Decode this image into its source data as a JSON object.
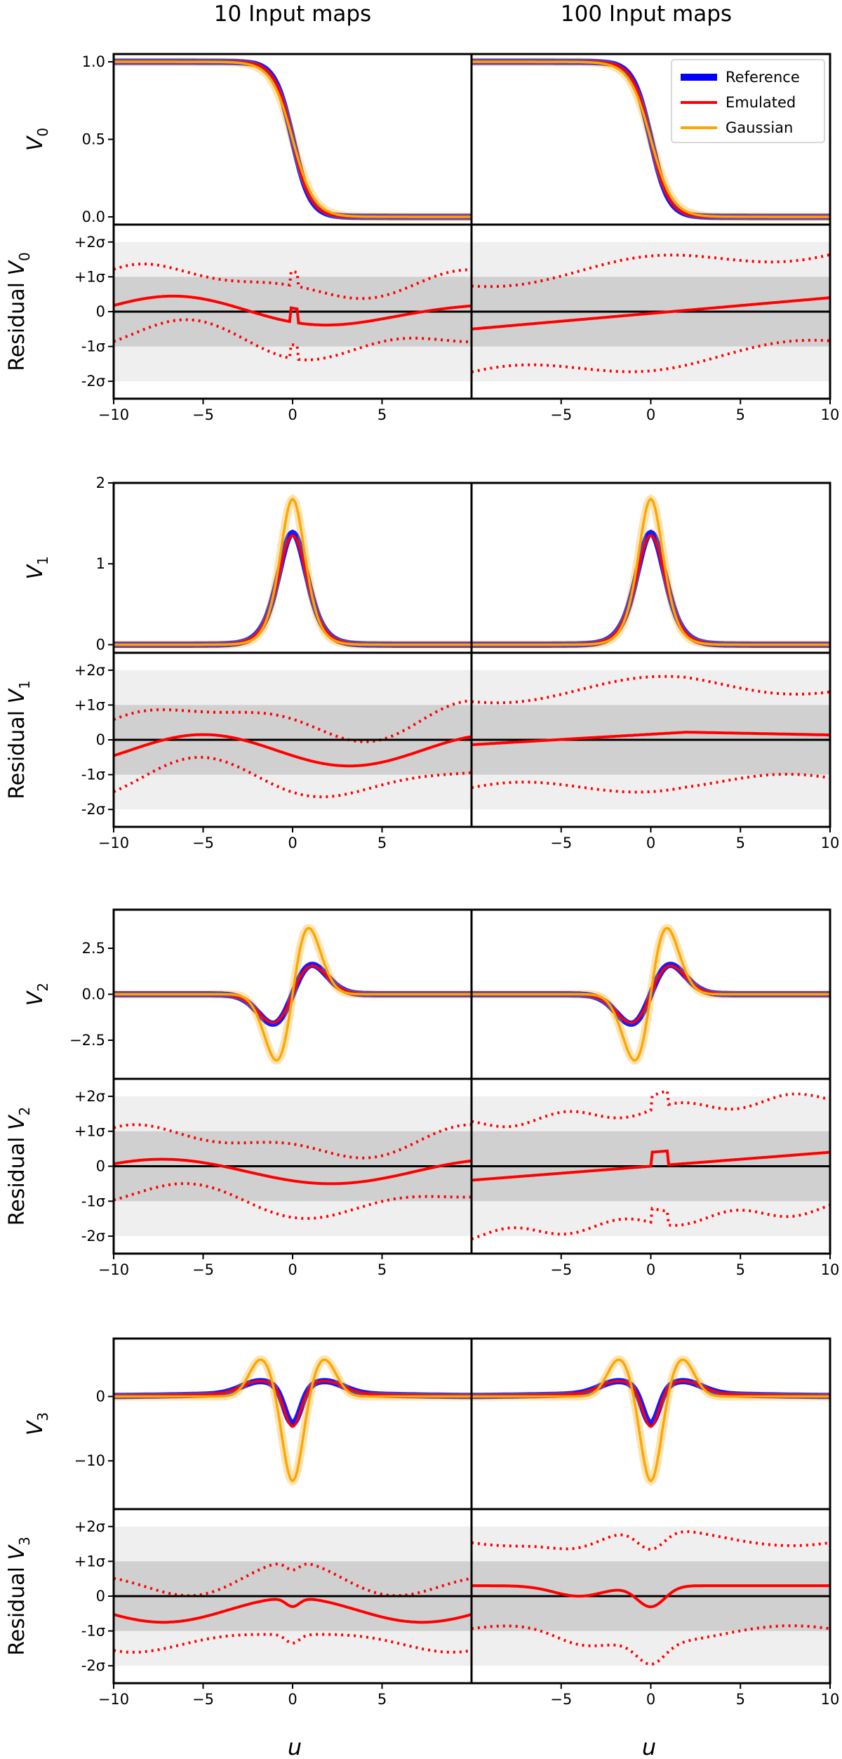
{
  "figure": {
    "column_titles": [
      "10 Input maps",
      "100 Input maps"
    ],
    "x_label": "u",
    "legend": [
      "Reference",
      "Emulated",
      "Gaussian"
    ],
    "sigma_tick_labels": [
      "+2σ",
      "+1σ",
      "0",
      "-1σ",
      "-2σ"
    ]
  },
  "colors": {
    "reference": "#0000ff",
    "emulated": "#ff0000",
    "gaussian": "#ffa500",
    "band_1sigma": "#d0d0d0",
    "band_2sigma": "#efefef"
  },
  "chart_data": [
    {
      "type": "line",
      "name": "V0",
      "panel": "top",
      "ylabel": "V0",
      "xlim": [
        -10,
        10
      ],
      "ylim": [
        -0.05,
        1.05
      ],
      "yticks": [
        0.0,
        0.5,
        1.0
      ],
      "ytick_labels": [
        "0.0",
        "0.5",
        "1.0"
      ],
      "shape": "sigmoid",
      "series": [
        {
          "name": "Reference",
          "amplitude": 1.0,
          "width": 0.5
        },
        {
          "name": "Emulated",
          "amplitude": 1.0,
          "width": 0.5
        },
        {
          "name": "Gaussian",
          "amplitude": 1.0,
          "width": 0.6
        }
      ]
    },
    {
      "type": "line",
      "name": "V1",
      "panel": "top",
      "ylabel": "V1",
      "xlim": [
        -10,
        10
      ],
      "ylim": [
        -0.1,
        2.0
      ],
      "yticks": [
        0,
        1,
        2
      ],
      "ytick_labels": [
        "0",
        "1",
        "2"
      ],
      "shape": "peak",
      "series": [
        {
          "name": "Reference",
          "amplitude": 1.38,
          "width": 1.1
        },
        {
          "name": "Emulated",
          "amplitude": 1.35,
          "width": 1.1
        },
        {
          "name": "Gaussian",
          "amplitude": 1.8,
          "width": 0.95
        }
      ]
    },
    {
      "type": "line",
      "name": "V2",
      "panel": "top",
      "ylabel": "V2",
      "xlim": [
        -10,
        10
      ],
      "ylim": [
        -4.6,
        4.6
      ],
      "yticks": [
        -2.5,
        0.0,
        2.5
      ],
      "ytick_labels": [
        "−2.5",
        "0.0",
        "2.5"
      ],
      "shape": "antisym",
      "series": [
        {
          "name": "Reference",
          "amplitude": 1.6,
          "width": 1.1
        },
        {
          "name": "Emulated",
          "amplitude": 1.55,
          "width": 1.1
        },
        {
          "name": "Gaussian",
          "amplitude": 3.6,
          "width": 0.9
        }
      ]
    },
    {
      "type": "line",
      "name": "V3",
      "panel": "top",
      "ylabel": "V3",
      "xlim": [
        -10,
        10
      ],
      "ylim": [
        -17.5,
        9
      ],
      "yticks": [
        -10,
        0
      ],
      "ytick_labels": [
        "−10",
        "0"
      ],
      "shape": "mexican",
      "series": [
        {
          "name": "Reference",
          "amplitude": 5.5,
          "side": 2.0
        },
        {
          "name": "Emulated",
          "amplitude": 6.0,
          "side": 2.0
        },
        {
          "name": "Gaussian",
          "amplitude": 13.5,
          "side": 5.8
        }
      ]
    }
  ],
  "residual_panels": {
    "ylim": [
      -2.5,
      2.5
    ],
    "yticks": [
      2,
      1,
      0,
      -1,
      -2
    ],
    "xticks_left": [
      -10,
      -5,
      0,
      5
    ],
    "xticks_right": [
      -5,
      0,
      5,
      10
    ]
  }
}
